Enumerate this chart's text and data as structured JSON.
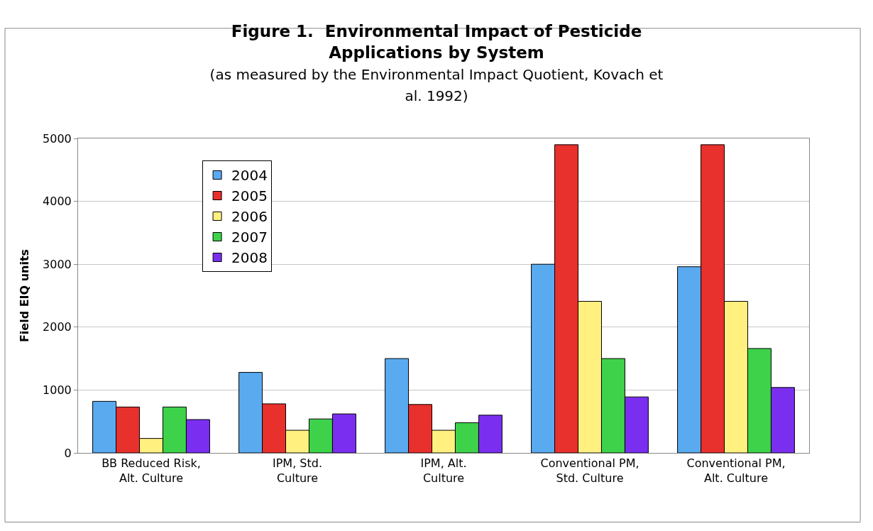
{
  "chart_data": {
    "type": "bar",
    "title": "Figure 1.  Environmental Impact of Pesticide Applications by System",
    "subtitle": "(as measured by the Environmental Impact Quotient, Kovach et al. 1992)",
    "ylabel": "Field EIQ units",
    "categories": [
      "BB Reduced Risk, Alt. Culture",
      "IPM, Std. Culture",
      "IPM, Alt. Culture",
      "Conventional PM, Std. Culture",
      "Conventional PM, Alt. Culture"
    ],
    "series": [
      {
        "name": "2004",
        "color": "#5aaaf0",
        "values": [
          820,
          1280,
          1500,
          3000,
          2960
        ]
      },
      {
        "name": "2005",
        "color": "#e8302c",
        "values": [
          730,
          780,
          770,
          4900,
          4900
        ]
      },
      {
        "name": "2006",
        "color": "#fff080",
        "values": [
          230,
          360,
          360,
          2410,
          2410
        ]
      },
      {
        "name": "2007",
        "color": "#3dd24a",
        "values": [
          730,
          540,
          480,
          1500,
          1660
        ]
      },
      {
        "name": "2008",
        "color": "#7a2ff0",
        "values": [
          530,
          620,
          600,
          890,
          1040
        ]
      }
    ],
    "ylim": [
      0,
      5000
    ],
    "yticks": [
      0,
      1000,
      2000,
      3000,
      4000,
      5000
    ],
    "grid": "y",
    "legend": "top left"
  }
}
